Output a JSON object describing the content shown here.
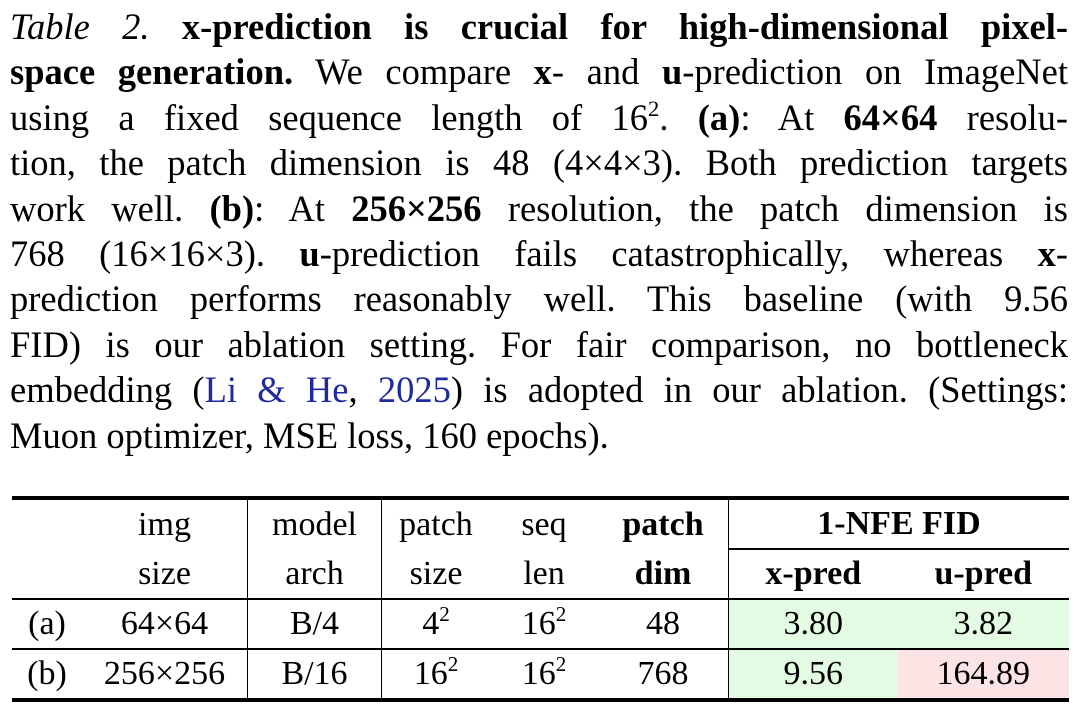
{
  "caption": {
    "lines": [
      [
        {
          "t": "Table 2.",
          "s": "i"
        },
        {
          "t": "  "
        },
        {
          "t": "x",
          "s": "b"
        },
        {
          "t": "-prediction is crucial for high-dimensional pixel-",
          "s": "b"
        }
      ],
      [
        {
          "t": "space generation.",
          "s": "b"
        },
        {
          "t": " We compare "
        },
        {
          "t": "x",
          "s": "b"
        },
        {
          "t": "- and "
        },
        {
          "t": "u",
          "s": "b"
        },
        {
          "t": "-prediction on ImageNet"
        }
      ],
      [
        {
          "t": "using a fixed sequence length of 16"
        },
        {
          "t": "2",
          "s": "sup"
        },
        {
          "t": ".  "
        },
        {
          "t": "(a)",
          "s": "b"
        },
        {
          "t": ":  At "
        },
        {
          "t": "64×64",
          "s": "b"
        },
        {
          "t": " resolu-"
        }
      ],
      [
        {
          "t": "tion, the patch dimension is 48 (4×4×3). Both prediction targets"
        }
      ],
      [
        {
          "t": "work well. "
        },
        {
          "t": "(b)",
          "s": "b"
        },
        {
          "t": ": At "
        },
        {
          "t": "256×256",
          "s": "b"
        },
        {
          "t": " resolution, the patch dimension is"
        }
      ],
      [
        {
          "t": "768 (16×16×3). "
        },
        {
          "t": "u",
          "s": "b"
        },
        {
          "t": "-prediction fails catastrophically, whereas "
        },
        {
          "t": "x",
          "s": "b"
        },
        {
          "t": "-"
        }
      ],
      [
        {
          "t": "prediction performs reasonably well.  This baseline (with 9.56"
        }
      ],
      [
        {
          "t": "FID) is our ablation setting. For fair comparison, no bottleneck"
        }
      ],
      [
        {
          "t": "embedding ("
        },
        {
          "t": "Li & He",
          "s": "l"
        },
        {
          "t": ", "
        },
        {
          "t": "2025",
          "s": "l"
        },
        {
          "t": ") is adopted in our ablation. (Settings:"
        }
      ],
      [
        {
          "t": "Muon optimizer, MSE loss, 160 epochs)."
        }
      ]
    ]
  },
  "table": {
    "header": {
      "img": [
        "img",
        "size"
      ],
      "model": [
        "model",
        "arch"
      ],
      "patch_size": [
        "patch",
        "size"
      ],
      "seq_len": [
        "seq",
        "len"
      ],
      "patch_dim": [
        "patch",
        "dim"
      ],
      "fid_group": "1-NFE FID",
      "x_pred": "x-pred",
      "u_pred": "u-pred"
    },
    "rows": [
      {
        "label": "(a)",
        "img": "64×64",
        "model": "B/4",
        "patch_base": "4",
        "patch_exp": "2",
        "seq_base": "16",
        "seq_exp": "2",
        "dim": "48",
        "x": "3.80",
        "u": "3.82"
      },
      {
        "label": "(b)",
        "img": "256×256",
        "model": "B/16",
        "patch_base": "16",
        "patch_exp": "2",
        "seq_base": "16",
        "seq_exp": "2",
        "dim": "768",
        "x": "9.56",
        "u": "164.89"
      }
    ],
    "colors": {
      "good": "#e3fbe3",
      "bad": "#fde4e4",
      "link": "#1f2a9c"
    }
  }
}
